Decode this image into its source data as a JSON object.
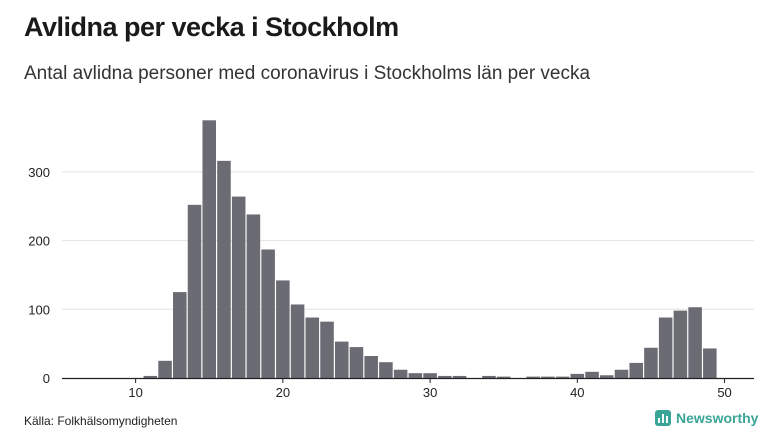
{
  "title": "Avlidna per vecka i Stockholm",
  "subtitle": "Antal avlidna personer med coronavirus i Stockholms län per vecka",
  "source": "Källa: Folkhälsomyndigheten",
  "brand": "Newsworthy",
  "colors": {
    "bar": "#6b6b73",
    "grid": "#e2e2e2",
    "axis": "#222222",
    "brand": "#3aa497"
  },
  "chart_data": {
    "type": "bar",
    "title": "Avlidna per vecka i Stockholm",
    "subtitle": "Antal avlidna personer med coronavirus i Stockholms län per vecka",
    "xlabel": "",
    "ylabel": "",
    "x": [
      11,
      12,
      13,
      14,
      15,
      16,
      17,
      18,
      19,
      20,
      21,
      22,
      23,
      24,
      25,
      26,
      27,
      28,
      29,
      30,
      31,
      32,
      34,
      35,
      37,
      38,
      39,
      40,
      41,
      42,
      43,
      44,
      45,
      46,
      47,
      48,
      49
    ],
    "values": [
      3,
      25,
      125,
      252,
      375,
      316,
      264,
      238,
      187,
      142,
      107,
      88,
      82,
      53,
      45,
      32,
      23,
      12,
      7,
      7,
      3,
      3,
      3,
      2,
      2,
      2,
      2,
      6,
      9,
      4,
      12,
      22,
      44,
      88,
      98,
      103,
      43
    ],
    "xlim": [
      5,
      52
    ],
    "ylim": [
      0,
      390
    ],
    "xticks": [
      10,
      20,
      30,
      40,
      50
    ],
    "yticks": [
      0,
      100,
      200,
      300
    ],
    "grid": true
  }
}
